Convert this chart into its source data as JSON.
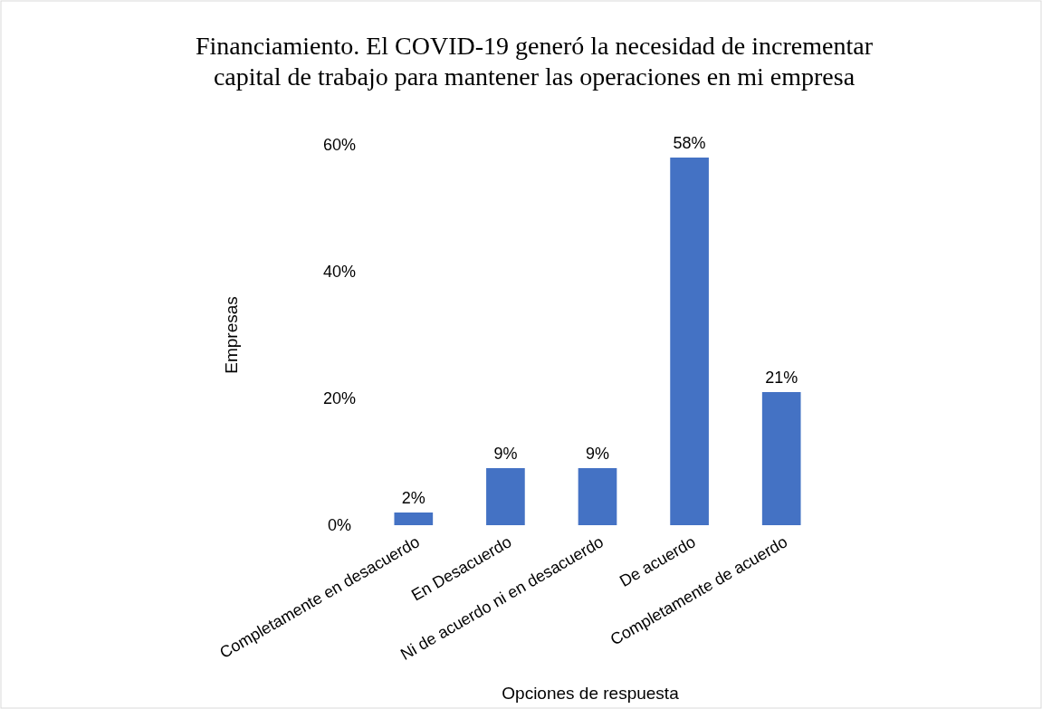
{
  "chart_data": {
    "type": "bar",
    "title": "Financiamiento. El COVID-19 generó la necesidad de incrementar capital de trabajo para mantener las operaciones en mi empresa",
    "xlabel": "Opciones de respuesta",
    "ylabel": "Empresas",
    "categories": [
      "Completamente en desacuerdo",
      "En Desacuerdo",
      "Ni de acuerdo ni en desacuerdo",
      "De acuerdo",
      "Completamente de acuerdo"
    ],
    "values": [
      2,
      9,
      9,
      58,
      21
    ],
    "color": "#4472c4",
    "ylim": [
      0,
      60
    ],
    "yticks": [
      {
        "value": 0,
        "label": "0%"
      },
      {
        "value": 20,
        "label": "20%"
      },
      {
        "value": 40,
        "label": "40%"
      },
      {
        "value": 60,
        "label": "60%"
      }
    ],
    "value_labels": [
      "2%",
      "9%",
      "9%",
      "58%",
      "21%"
    ],
    "grid": false
  }
}
